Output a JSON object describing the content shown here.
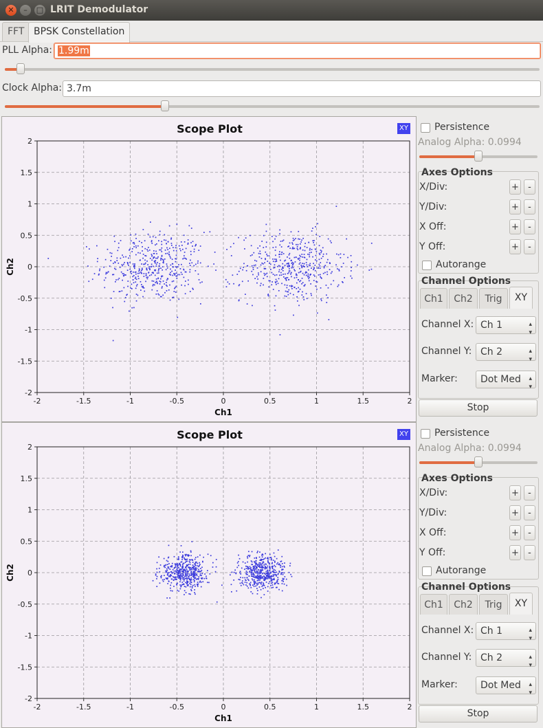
{
  "window": {
    "title": "LRIT Demodulator"
  },
  "tabs": [
    {
      "label": "FFT"
    },
    {
      "label": "BPSK Constellation"
    }
  ],
  "pll": {
    "label": "PLL Alpha:",
    "value": "1.99m",
    "slider_fraction": 0.03
  },
  "clock": {
    "label": "Clock Alpha:",
    "value": "3.7m",
    "slider_fraction": 0.3
  },
  "colors": {
    "accent": "#f07746",
    "points": "#3b3bdc",
    "plot_bg": "#f5eff6",
    "badge": "#4242ee"
  },
  "scopes": [
    {
      "title": "Scope Plot",
      "badge": "XY",
      "persistence_label": "Persistence",
      "analog_alpha_label": "Analog Alpha: 0.0994",
      "analog_alpha_fraction": 0.5,
      "axes_options": {
        "title": "Axes Options",
        "rows": [
          {
            "label": "X/Div:"
          },
          {
            "label": "Y/Div:"
          },
          {
            "label": "X Off:"
          },
          {
            "label": "Y Off:"
          }
        ],
        "plus": "+",
        "minus": "-"
      },
      "autorange_label": "Autorange",
      "channel_options": {
        "title": "Channel Options",
        "tabs": [
          {
            "label": "Ch1"
          },
          {
            "label": "Ch2"
          },
          {
            "label": "Trig"
          },
          {
            "label": "XY"
          }
        ],
        "channel_x_label": "Channel X:",
        "channel_x_value": "Ch 1",
        "channel_y_label": "Channel Y:",
        "channel_y_value": "Ch 2",
        "marker_label": "Marker:",
        "marker_value": "Dot Med"
      },
      "stop_label": "Stop"
    },
    {
      "title": "Scope Plot",
      "badge": "XY",
      "persistence_label": "Persistence",
      "analog_alpha_label": "Analog Alpha: 0.0994",
      "analog_alpha_fraction": 0.5,
      "axes_options": {
        "title": "Axes Options",
        "rows": [
          {
            "label": "X/Div:"
          },
          {
            "label": "Y/Div:"
          },
          {
            "label": "X Off:"
          },
          {
            "label": "Y Off:"
          }
        ],
        "plus": "+",
        "minus": "-"
      },
      "autorange_label": "Autorange",
      "channel_options": {
        "title": "Channel Options",
        "tabs": [
          {
            "label": "Ch1"
          },
          {
            "label": "Ch2"
          },
          {
            "label": "Trig"
          },
          {
            "label": "XY"
          }
        ],
        "channel_x_label": "Channel X:",
        "channel_x_value": "Ch 1",
        "channel_y_label": "Channel Y:",
        "channel_y_value": "Ch 2",
        "marker_label": "Marker:",
        "marker_value": "Dot Med"
      },
      "stop_label": "Stop"
    }
  ],
  "chart_data": [
    {
      "type": "scatter",
      "title": "Scope Plot",
      "xlabel": "Ch1",
      "ylabel": "Ch2",
      "xlim": [
        -2,
        2
      ],
      "ylim": [
        -2,
        2
      ],
      "xticks": [
        "-2",
        "-1.5",
        "-1",
        "-0.5",
        "0",
        "0.5",
        "1",
        "1.5",
        "2"
      ],
      "yticks": [
        "2",
        "1.5",
        "1",
        "0.5",
        "0",
        "-0.5",
        "-1",
        "-1.5",
        "-2"
      ],
      "grid": true,
      "series": [
        {
          "clusters": [
            {
              "center": [
                -0.75,
                0.0
              ],
              "spread": [
                0.28,
                0.28
              ],
              "count": 480
            },
            {
              "center": [
                0.75,
                0.0
              ],
              "spread": [
                0.28,
                0.28
              ],
              "count": 480
            }
          ]
        }
      ]
    },
    {
      "type": "scatter",
      "title": "Scope Plot",
      "xlabel": "Ch1",
      "ylabel": "Ch2",
      "xlim": [
        -2,
        2
      ],
      "ylim": [
        -2,
        2
      ],
      "xticks": [
        "-2",
        "-1.5",
        "-1",
        "-0.5",
        "0",
        "0.5",
        "1",
        "1.5",
        "2"
      ],
      "yticks": [
        "2",
        "1.5",
        "1",
        "0.5",
        "0",
        "-0.5",
        "-1",
        "-1.5",
        "-2"
      ],
      "grid": true,
      "series": [
        {
          "clusters": [
            {
              "center": [
                -0.42,
                0.0
              ],
              "spread": [
                0.13,
                0.14
              ],
              "count": 480
            },
            {
              "center": [
                0.42,
                0.0
              ],
              "spread": [
                0.13,
                0.14
              ],
              "count": 480
            }
          ]
        }
      ]
    }
  ]
}
